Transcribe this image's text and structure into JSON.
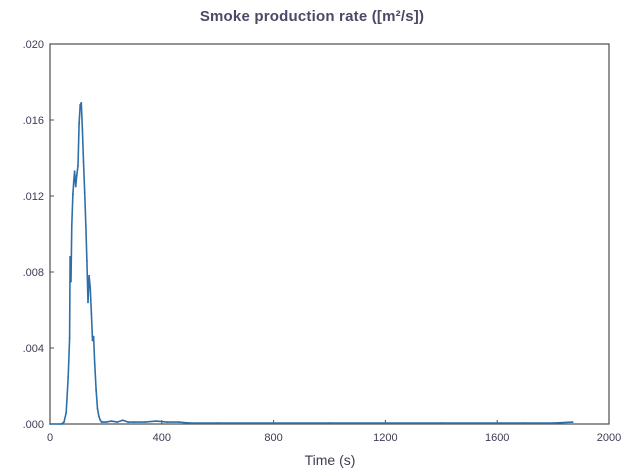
{
  "chart_data": {
    "type": "line",
    "title": "Smoke production rate ([m²/s])",
    "xlabel": "Time (s)",
    "ylabel": "",
    "xlim": [
      0,
      2000
    ],
    "ylim": [
      0,
      0.02
    ],
    "x_ticks": [
      0,
      400,
      800,
      1200,
      1600,
      2000
    ],
    "x_tick_labels": [
      "0",
      "400",
      "800",
      "1200",
      "1600",
      "2000"
    ],
    "y_ticks": [
      0,
      0.004,
      0.008,
      0.012,
      0.016,
      0.02
    ],
    "y_tick_labels": [
      ".000",
      ".004",
      ".008",
      ".012",
      ".016",
      ".020"
    ],
    "grid": false,
    "legend": "none",
    "line_color": "#2f6fa8",
    "series": [
      {
        "x": [
          0,
          40,
          50,
          58,
          65,
          70,
          72,
          75,
          78,
          82,
          85,
          88,
          92,
          96,
          100,
          104,
          108,
          112,
          116,
          120,
          124,
          128,
          132,
          136,
          140,
          144,
          148,
          152,
          156,
          160,
          165,
          170,
          175,
          180,
          185,
          190,
          200,
          220,
          240,
          260,
          280,
          300,
          340,
          380,
          420,
          460,
          500,
          600,
          800,
          1000,
          1200,
          1400,
          1600,
          1700,
          1800,
          1870
        ],
        "y": [
          0,
          0,
          0.0001,
          0.0006,
          0.0025,
          0.0045,
          0.0088,
          0.0075,
          0.0105,
          0.0121,
          0.0128,
          0.0133,
          0.0125,
          0.0131,
          0.0136,
          0.0158,
          0.0168,
          0.0169,
          0.0155,
          0.0138,
          0.0122,
          0.0105,
          0.0086,
          0.0064,
          0.0078,
          0.0072,
          0.0058,
          0.0044,
          0.0046,
          0.0032,
          0.0018,
          0.0008,
          0.0004,
          0.0002,
          0.0001,
          0.0001,
          0.0001,
          0.00015,
          0.0001,
          0.0002,
          0.0001,
          0.0001,
          0.0001,
          0.00015,
          0.0001,
          0.0001,
          5e-05,
          5e-05,
          5e-05,
          5e-05,
          5e-05,
          5e-05,
          5e-05,
          5e-05,
          5e-05,
          0.0001
        ]
      }
    ]
  }
}
